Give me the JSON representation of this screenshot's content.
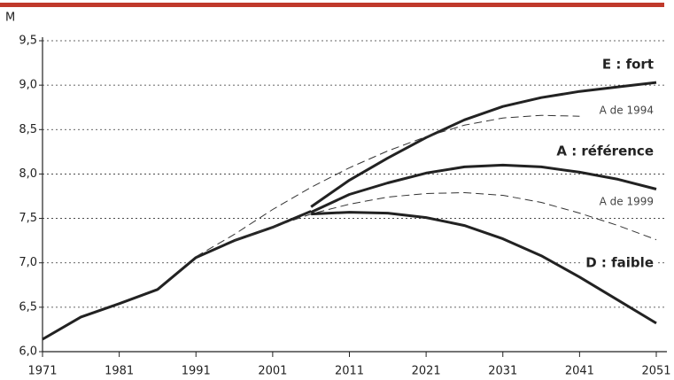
{
  "chart_data": {
    "type": "line",
    "y_label": "M",
    "xlim": [
      1971,
      2051
    ],
    "xticks": [
      1971,
      1981,
      1991,
      2001,
      2011,
      2021,
      2031,
      2041,
      2051
    ],
    "ylim": [
      6.0,
      9.5
    ],
    "yticks": [
      {
        "value": 6.0,
        "label": "6,0"
      },
      {
        "value": 6.5,
        "label": "6,5"
      },
      {
        "value": 7.0,
        "label": "7,0"
      },
      {
        "value": 7.5,
        "label": "7,5"
      },
      {
        "value": 8.0,
        "label": "8,0"
      },
      {
        "value": 8.5,
        "label": "8,5"
      },
      {
        "value": 9.0,
        "label": "9,0"
      },
      {
        "value": 9.5,
        "label": "9,5"
      }
    ],
    "grid": true,
    "series": [
      {
        "color": "#222222",
        "dash": false,
        "x": [
          1971,
          1976,
          1981,
          1986,
          1991,
          1996,
          2001,
          2006
        ],
        "values": [
          6.14,
          6.39,
          6.54,
          6.7,
          7.06,
          7.25,
          7.4,
          7.58
        ]
      },
      {
        "name": "E : fort",
        "color": "#222222",
        "dash": false,
        "x": [
          2006,
          2011,
          2016,
          2021,
          2026,
          2031,
          2036,
          2041,
          2046,
          2051
        ],
        "values": [
          7.63,
          7.93,
          8.18,
          8.41,
          8.61,
          8.76,
          8.86,
          8.93,
          8.98,
          9.03
        ]
      },
      {
        "name": "A de 1994",
        "color": "#333333",
        "dash": true,
        "x": [
          1991,
          1996,
          2001,
          2006,
          2011,
          2016,
          2021,
          2026,
          2031,
          2036,
          2041
        ],
        "values": [
          7.07,
          7.32,
          7.6,
          7.85,
          8.07,
          8.26,
          8.42,
          8.55,
          8.63,
          8.66,
          8.65
        ]
      },
      {
        "name": "A : référence",
        "color": "#222222",
        "dash": false,
        "x": [
          2006,
          2011,
          2016,
          2021,
          2026,
          2031,
          2036,
          2041,
          2046,
          2051
        ],
        "values": [
          7.57,
          7.77,
          7.9,
          8.01,
          8.08,
          8.1,
          8.08,
          8.02,
          7.94,
          7.83
        ]
      },
      {
        "name": "A de 1999",
        "color": "#333333",
        "dash": true,
        "x": [
          1996,
          2001,
          2006,
          2011,
          2016,
          2021,
          2026,
          2031,
          2036,
          2041,
          2046,
          2051
        ],
        "values": [
          7.25,
          7.4,
          7.55,
          7.66,
          7.74,
          7.78,
          7.79,
          7.76,
          7.68,
          7.56,
          7.42,
          7.26
        ]
      },
      {
        "name": "D : faible",
        "color": "#222222",
        "dash": false,
        "x": [
          2006,
          2011,
          2016,
          2021,
          2026,
          2031,
          2036,
          2041,
          2046,
          2051
        ],
        "values": [
          7.55,
          7.57,
          7.56,
          7.51,
          7.42,
          7.27,
          7.08,
          6.84,
          6.58,
          6.32
        ]
      }
    ]
  }
}
